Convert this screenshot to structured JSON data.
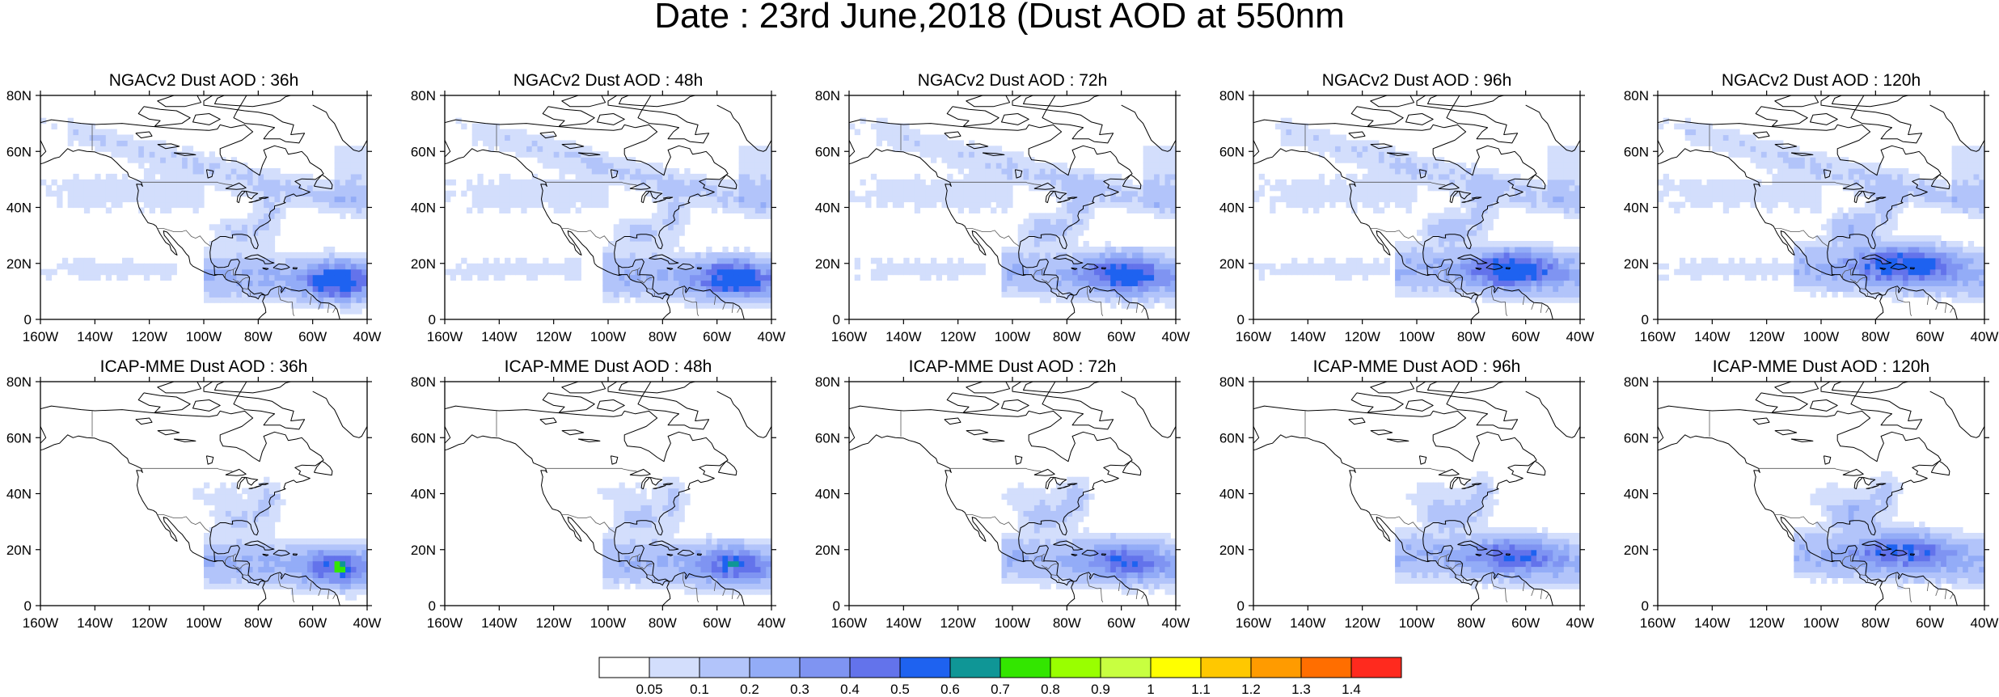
{
  "figure": {
    "title": "Date : 23rd June,2018 (Dust AOD at 550nm",
    "panels": [
      {
        "title": "NGACv2 Dust AOD : 36h",
        "model": "NGAC",
        "lead": 36
      },
      {
        "title": "NGACv2 Dust AOD : 48h",
        "model": "NGAC",
        "lead": 48
      },
      {
        "title": "NGACv2 Dust AOD : 72h",
        "model": "NGAC",
        "lead": 72
      },
      {
        "title": "NGACv2 Dust AOD : 96h",
        "model": "NGAC",
        "lead": 96
      },
      {
        "title": "NGACv2 Dust AOD : 120h",
        "model": "NGAC",
        "lead": 120
      },
      {
        "title": "ICAP-MME Dust AOD : 36h",
        "model": "ICAP",
        "lead": 36
      },
      {
        "title": "ICAP-MME Dust AOD : 48h",
        "model": "ICAP",
        "lead": 48
      },
      {
        "title": "ICAP-MME Dust AOD : 72h",
        "model": "ICAP",
        "lead": 72
      },
      {
        "title": "ICAP-MME Dust AOD : 96h",
        "model": "ICAP",
        "lead": 96
      },
      {
        "title": "ICAP-MME Dust AOD : 120h",
        "model": "ICAP",
        "lead": 120
      }
    ],
    "map_extent": {
      "lon_min": -160,
      "lon_max": -40,
      "lat_min": 0,
      "lat_max": 80
    },
    "x_ticks": [
      {
        "value": -160,
        "label": "160W"
      },
      {
        "value": -140,
        "label": "140W"
      },
      {
        "value": -120,
        "label": "120W"
      },
      {
        "value": -100,
        "label": "100W"
      },
      {
        "value": -80,
        "label": "80W"
      },
      {
        "value": -60,
        "label": "60W"
      },
      {
        "value": -40,
        "label": "40W"
      }
    ],
    "y_ticks": [
      {
        "value": 0,
        "label": "0"
      },
      {
        "value": 20,
        "label": "20N"
      },
      {
        "value": 40,
        "label": "40N"
      },
      {
        "value": 60,
        "label": "60N"
      },
      {
        "value": 80,
        "label": "80N"
      }
    ],
    "colorbar": {
      "colors": [
        "#ffffff",
        "#d3defc",
        "#b2c4fa",
        "#93acf7",
        "#7f94f2",
        "#6373eb",
        "#1e62f0",
        "#0f9696",
        "#33e600",
        "#99ff00",
        "#c8ff40",
        "#ffff00",
        "#ffc800",
        "#ff9b00",
        "#ff6e00",
        "#ff2a1e"
      ],
      "labels": [
        "0.05",
        "0.1",
        "0.2",
        "0.3",
        "0.4",
        "0.5",
        "0.6",
        "0.7",
        "0.8",
        "0.9",
        "1",
        "1.1",
        "1.2",
        "1.3",
        "1.4"
      ]
    }
  }
}
